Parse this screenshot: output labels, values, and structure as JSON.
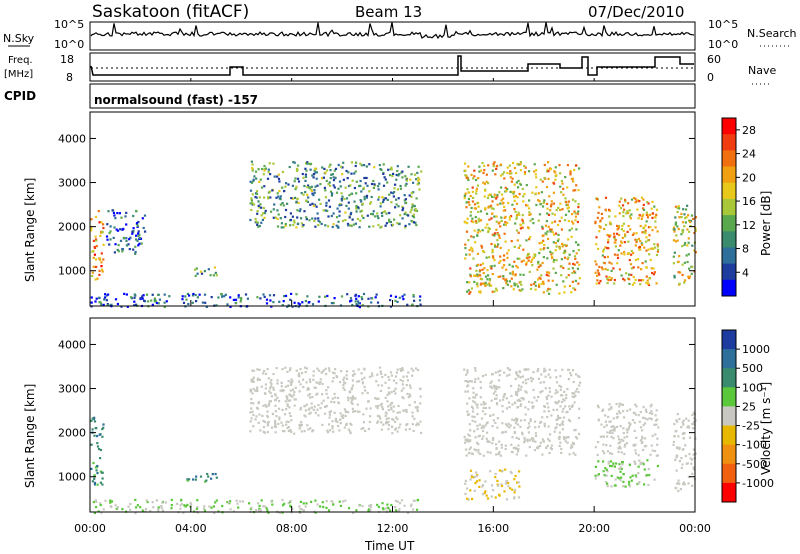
{
  "header": {
    "station": "Saskatoon (fitACF)",
    "beam": "Beam 13",
    "date": "07/Dec/2010"
  },
  "top_panels": {
    "nsky_label": "N.Sky",
    "nsky_ticks": [
      "10^5",
      "10^0"
    ],
    "nsearch_label": "N.Search",
    "nsearch_ticks": [
      "10^5",
      "10^0"
    ],
    "freq_label_1": "Freq.",
    "freq_label_2": "[MHz]",
    "freq_ticks": [
      "18",
      "8"
    ],
    "nave_label": "Nave",
    "nave_ticks": [
      "60",
      "0"
    ],
    "cpid_label": "CPID",
    "cpid_text": "normalsound (fast) -157"
  },
  "colors": {
    "power_scale": [
      "#0000ff",
      "#1e3c9e",
      "#2e6e9a",
      "#3a8a6e",
      "#5aa84e",
      "#a8c83a",
      "#e8c81a",
      "#f0a010",
      "#f07010",
      "#f03c10",
      "#ff0000"
    ],
    "velocity_scale": [
      "#1e3ca0",
      "#2e6e9a",
      "#3a8a6e",
      "#5ac83a",
      "#c8c8c0",
      "#e8b800",
      "#f09010",
      "#f06010",
      "#ff0000"
    ]
  },
  "chart_data": [
    {
      "type": "heatmap",
      "panel": "power",
      "ylabel": "Slant Range [km]",
      "yticks": [
        "1000",
        "2000",
        "3000",
        "4000"
      ],
      "ylim": [
        200,
        4600
      ],
      "xlim_hours": [
        0,
        24
      ],
      "colorbar_label": "Power [dB]",
      "colorbar_ticks": [
        "4",
        "8",
        "12",
        "16",
        "20",
        "24",
        "28"
      ],
      "colorbar_range": [
        0,
        30
      ],
      "echo_regions": [
        {
          "t": [
            0.0,
            0.5
          ],
          "r": [
            800,
            2400
          ],
          "value": 22
        },
        {
          "t": [
            0.6,
            2.2
          ],
          "r": [
            1400,
            2400
          ],
          "value": 6
        },
        {
          "t": [
            3.8,
            5.0
          ],
          "r": [
            900,
            1100
          ],
          "value": 10
        },
        {
          "t": [
            6.3,
            13.1
          ],
          "r": [
            2000,
            3500
          ],
          "value": 10
        },
        {
          "t": [
            0.0,
            13.1
          ],
          "r": [
            200,
            500
          ],
          "value": 6
        },
        {
          "t": [
            14.8,
            19.4
          ],
          "r": [
            500,
            3500
          ],
          "value": 18
        },
        {
          "t": [
            20.0,
            22.5
          ],
          "r": [
            700,
            2700
          ],
          "value": 20
        },
        {
          "t": [
            23.1,
            24.0
          ],
          "r": [
            700,
            2500
          ],
          "value": 16
        }
      ]
    },
    {
      "type": "heatmap",
      "panel": "velocity",
      "ylabel": "Slant Range [km]",
      "yticks": [
        "1000",
        "2000",
        "3000",
        "4000"
      ],
      "ylim": [
        200,
        4600
      ],
      "xlabel": "Time UT",
      "xticks": [
        "00:00",
        "04:00",
        "08:00",
        "12:00",
        "16:00",
        "20:00",
        "00:00"
      ],
      "xlim_hours": [
        0,
        24
      ],
      "colorbar_label": "Velocity [m s⁻¹]",
      "colorbar_ticks": [
        "1000",
        "500",
        "100",
        "25",
        "-25",
        "-100",
        "-500",
        "-1000"
      ],
      "colorbar_range": [
        -1000,
        1000
      ],
      "echo_regions": [
        {
          "t": [
            0.0,
            0.5
          ],
          "r": [
            800,
            2400
          ],
          "value": 500
        },
        {
          "t": [
            3.8,
            5.0
          ],
          "r": [
            900,
            1100
          ],
          "value": 500
        },
        {
          "t": [
            6.3,
            13.1
          ],
          "r": [
            2000,
            3500
          ],
          "value": 0
        },
        {
          "t": [
            0.0,
            13.1
          ],
          "r": [
            200,
            500
          ],
          "value": 100
        },
        {
          "t": [
            14.8,
            17.0
          ],
          "r": [
            500,
            1200
          ],
          "value": -100
        },
        {
          "t": [
            14.8,
            19.4
          ],
          "r": [
            1500,
            3500
          ],
          "value": 0
        },
        {
          "t": [
            20.0,
            22.5
          ],
          "r": [
            800,
            1400
          ],
          "value": 100
        },
        {
          "t": [
            20.0,
            22.5
          ],
          "r": [
            1500,
            2700
          ],
          "value": 0
        },
        {
          "t": [
            23.1,
            24.0
          ],
          "r": [
            700,
            2500
          ],
          "value": 0
        }
      ]
    }
  ]
}
